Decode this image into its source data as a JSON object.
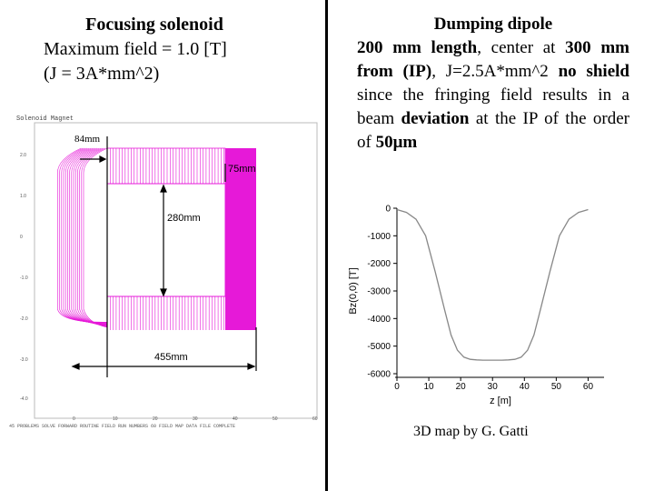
{
  "left": {
    "title": "Focusing solenoid",
    "line1": "Maximum field = 1.0 [T]",
    "line2": "(J = 3A*mm^2)",
    "plot_header": "Solenoid Magnet",
    "footer": "45 PROBLEMS SOLVE FORWARD ROUTINE FIELD RUN NUMBERS 60 FIELD MAP DATA FILE COMPLETE",
    "dims": {
      "d84": "84mm",
      "d75": "75mm",
      "d280": "280mm",
      "d455": "455mm"
    },
    "yticks": [
      "2.0",
      "1.0",
      "0",
      "-1.0",
      "-2.0",
      "-3.0",
      "-4.0"
    ],
    "xticks": [
      "0",
      "10",
      "20",
      "30",
      "40",
      "50",
      "60"
    ],
    "magnet_color": "#e619d8"
  },
  "right": {
    "title": "Dumping dipole",
    "p_a": "200 mm length",
    "p_b": ", center at ",
    "p_c": "300 mm from (IP)",
    "p_d": ", J=2.5A*mm^2",
    "p_e": "no shield",
    "p_f": " since the fringing field results in a beam ",
    "p_g": "deviation",
    "p_h": " at the IP of the order of ",
    "p_i": "50μm",
    "credit": "3D map by G. Gatti"
  },
  "chart_data": {
    "type": "line",
    "title": "",
    "xlabel": "z [m]",
    "ylabel": "Bz(0,0) [T]",
    "xlim": [
      0,
      65
    ],
    "ylim": [
      -6000,
      0
    ],
    "xticks": [
      0,
      10,
      20,
      30,
      40,
      50,
      60
    ],
    "yticks": [
      0,
      -1000,
      -2000,
      -3000,
      -4000,
      -5000,
      -6000
    ],
    "series": [
      {
        "name": "Bz",
        "x": [
          0,
          3,
          6,
          9,
          12,
          15,
          17,
          19,
          21,
          23,
          25,
          27,
          30,
          33,
          35,
          37,
          39,
          41,
          43,
          45,
          48,
          51,
          54,
          57,
          60
        ],
        "y": [
          -50,
          -150,
          -400,
          -1000,
          -2300,
          -3700,
          -4600,
          -5150,
          -5400,
          -5480,
          -5500,
          -5510,
          -5510,
          -5510,
          -5500,
          -5480,
          -5400,
          -5150,
          -4600,
          -3700,
          -2300,
          -1000,
          -400,
          -150,
          -50
        ]
      }
    ]
  }
}
